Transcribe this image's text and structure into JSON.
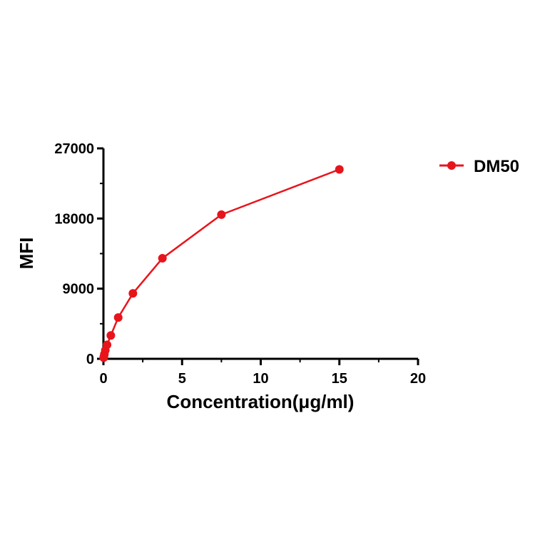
{
  "chart_data": {
    "type": "line",
    "title": "",
    "xlabel": "Concentration(μg/ml)",
    "ylabel": "MFI",
    "xlim": [
      0,
      20
    ],
    "ylim": [
      0,
      27000
    ],
    "x_ticks": [
      0,
      5,
      10,
      15,
      20
    ],
    "x_tick_labels": [
      "0",
      "5",
      "10",
      "15",
      "20"
    ],
    "y_ticks": [
      0,
      9000,
      18000,
      27000
    ],
    "y_tick_labels": [
      "0",
      "9000",
      "18000",
      "27000"
    ],
    "grid": false,
    "legend_position": "top-right",
    "series": [
      {
        "name": "DM50",
        "color": "#e8141b",
        "marker": "circle",
        "x": [
          0.015,
          0.03,
          0.06,
          0.12,
          0.23,
          0.47,
          0.94,
          1.875,
          3.75,
          7.5,
          15
        ],
        "y": [
          150,
          300,
          600,
          1100,
          1800,
          3000,
          5300,
          8400,
          12900,
          18500,
          24300
        ]
      }
    ]
  }
}
